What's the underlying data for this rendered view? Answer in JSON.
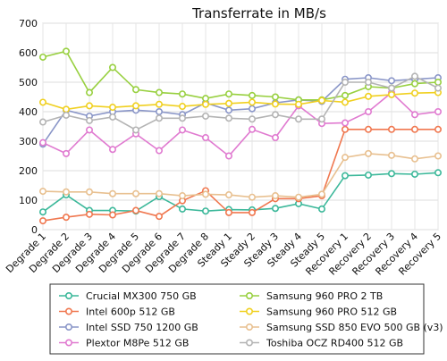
{
  "chart_data": {
    "type": "line",
    "title": "Transferrate in MB/s",
    "xlabel": "",
    "ylabel": "",
    "ylim": [
      0,
      700
    ],
    "yticks": [
      0,
      100,
      200,
      300,
      400,
      500,
      600,
      700
    ],
    "grid": true,
    "legend_position": "bottom",
    "categories": [
      "Degrade 1",
      "Degrade 2",
      "Degrade 3",
      "Degrade 4",
      "Degrade 5",
      "Degrade 6",
      "Degrade 7",
      "Degrade 8",
      "Steady 1",
      "Steady 2",
      "Steady 3",
      "Steady 4",
      "Steady 5",
      "Recovery 1",
      "Recovery 2",
      "Recovery 3",
      "Recovery 4",
      "Recovery 5"
    ],
    "series": [
      {
        "name": "Crucial MX300 750 GB",
        "color": "#3cb89a",
        "values": [
          60,
          118,
          65,
          65,
          63,
          112,
          70,
          63,
          68,
          67,
          72,
          88,
          70,
          183,
          185,
          190,
          188,
          193
        ]
      },
      {
        "name": "Intel 600p 512 GB",
        "color": "#f07850",
        "values": [
          30,
          42,
          52,
          50,
          65,
          45,
          98,
          132,
          58,
          58,
          105,
          105,
          115,
          340,
          340,
          340,
          340,
          340
        ]
      },
      {
        "name": "Intel SSD 750 1200 GB",
        "color": "#8a96c8",
        "values": [
          290,
          405,
          385,
          400,
          405,
          400,
          390,
          430,
          405,
          410,
          430,
          440,
          435,
          510,
          515,
          505,
          510,
          515
        ]
      },
      {
        "name": "Plextor M8Pe 512 GB",
        "color": "#e07ad0",
        "values": [
          295,
          258,
          338,
          272,
          325,
          268,
          338,
          312,
          250,
          340,
          312,
          420,
          360,
          362,
          400,
          465,
          390,
          400
        ]
      },
      {
        "name": "Samsung 960 PRO 2 TB",
        "color": "#98d040",
        "values": [
          585,
          605,
          465,
          550,
          475,
          465,
          460,
          445,
          460,
          455,
          450,
          440,
          440,
          455,
          485,
          480,
          495,
          500
        ]
      },
      {
        "name": "Samsung 960 PRO 512 GB",
        "color": "#f0d020",
        "values": [
          432,
          408,
          420,
          415,
          420,
          425,
          418,
          425,
          428,
          432,
          426,
          425,
          438,
          432,
          452,
          458,
          463,
          465
        ]
      },
      {
        "name": "Samsung SSD 850 EVO 500 GB (v3)",
        "color": "#e8c090",
        "values": [
          130,
          128,
          128,
          122,
          122,
          122,
          115,
          120,
          118,
          110,
          115,
          110,
          120,
          245,
          258,
          252,
          240,
          250
        ]
      },
      {
        "name": "Toshiba OCZ RD400 512 GB",
        "color": "#b4b4b4",
        "values": [
          365,
          388,
          370,
          382,
          338,
          378,
          378,
          385,
          378,
          375,
          390,
          375,
          375,
          500,
          500,
          480,
          520,
          480
        ]
      }
    ]
  }
}
